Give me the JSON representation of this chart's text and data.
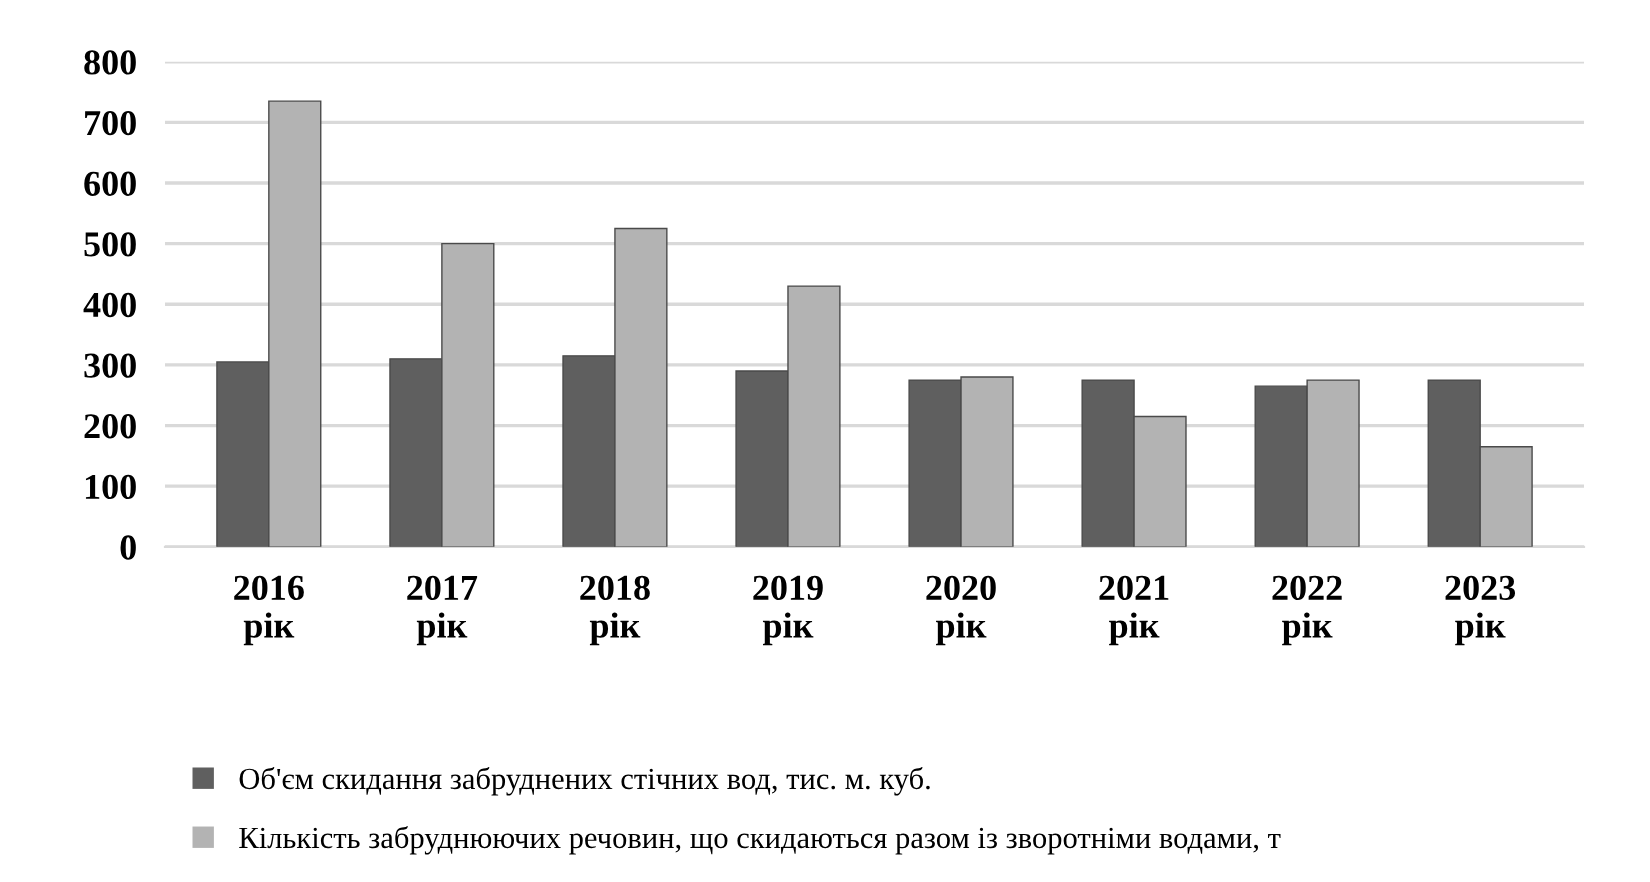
{
  "chart_data": {
    "type": "bar",
    "categories": [
      "2016\nрік",
      "2017\nрік",
      "2018\nрік",
      "2019\nрік",
      "2020\nрік",
      "2021\nрік",
      "2022\nрік",
      "2023\nрік"
    ],
    "series": [
      {
        "name": "Об'єм скидання забруднених стічних вод, тис. м. куб.",
        "color": "#5f5f5f",
        "values": [
          305,
          310,
          315,
          290,
          275,
          275,
          265,
          275
        ]
      },
      {
        "name": "Кількість забруднюючих речовин, що скидаються разом із зворотніми водами, т",
        "color": "#b3b3b3",
        "values": [
          735,
          500,
          525,
          430,
          280,
          215,
          275,
          165
        ]
      }
    ],
    "ylim": [
      0,
      800
    ],
    "yticks": [
      0,
      100,
      200,
      300,
      400,
      500,
      600,
      700,
      800
    ],
    "grid": "y",
    "legend": "bottom"
  }
}
